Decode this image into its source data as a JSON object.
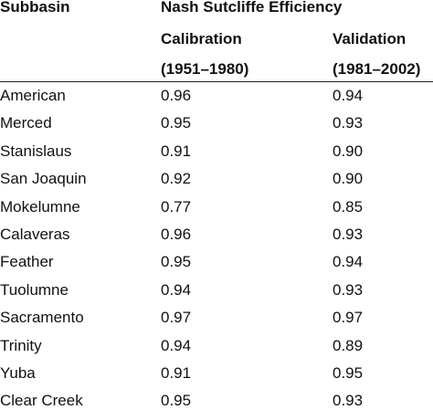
{
  "table": {
    "headers": {
      "subbasin": "Subbasin",
      "group": "Nash Sutcliffe Efficiency",
      "calibration": "Calibration",
      "calibration_period": "(1951–1980)",
      "validation": "Validation",
      "validation_period": "(1981–2002)"
    },
    "rows": [
      {
        "name": "American",
        "calibration": "0.96",
        "validation": "0.94"
      },
      {
        "name": "Merced",
        "calibration": "0.95",
        "validation": "0.93"
      },
      {
        "name": "Stanislaus",
        "calibration": "0.91",
        "validation": "0.90"
      },
      {
        "name": "San Joaquin",
        "calibration": "0.92",
        "validation": "0.90"
      },
      {
        "name": "Mokelumne",
        "calibration": "0.77",
        "validation": "0.85"
      },
      {
        "name": "Calaveras",
        "calibration": "0.96",
        "validation": "0.93"
      },
      {
        "name": "Feather",
        "calibration": "0.95",
        "validation": "0.94"
      },
      {
        "name": "Tuolumne",
        "calibration": "0.94",
        "validation": "0.93"
      },
      {
        "name": "Sacramento",
        "calibration": "0.97",
        "validation": "0.97"
      },
      {
        "name": "Trinity",
        "calibration": "0.94",
        "validation": "0.89"
      },
      {
        "name": "Yuba",
        "calibration": "0.91",
        "validation": "0.95"
      },
      {
        "name": "Clear Creek",
        "calibration": "0.95",
        "validation": "0.93"
      }
    ]
  }
}
